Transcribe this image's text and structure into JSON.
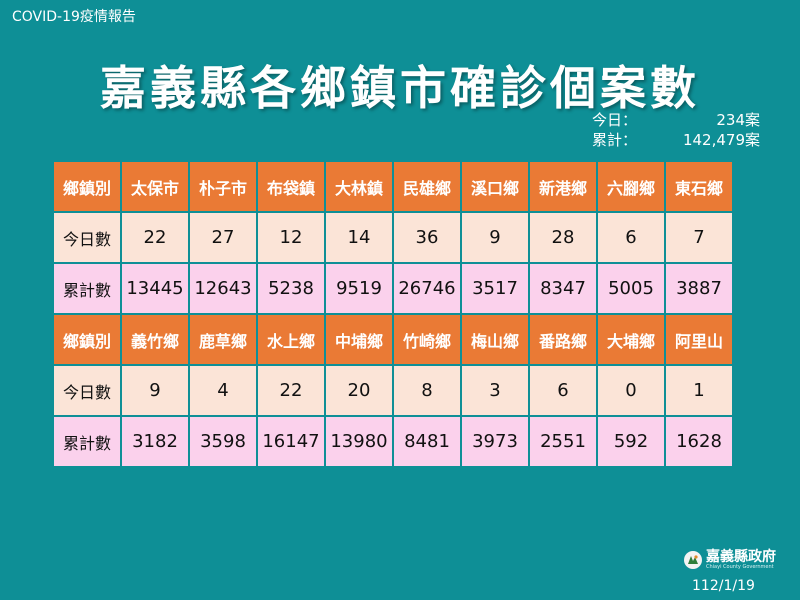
{
  "header": {
    "report_label": "COVID-19疫情報告",
    "title": "嘉義縣各鄉鎮市確診個案數"
  },
  "summary": {
    "today_label": "今日：",
    "today_value": "234案",
    "total_label": "累計：",
    "total_value": "142,479案"
  },
  "table": {
    "sections": [
      {
        "header": [
          "鄉鎮別",
          "太保市",
          "朴子市",
          "布袋鎮",
          "大林鎮",
          "民雄鄉",
          "溪口鄉",
          "新港鄉",
          "六腳鄉",
          "東石鄉"
        ],
        "today": [
          "今日數",
          "22",
          "27",
          "12",
          "14",
          "36",
          "9",
          "28",
          "6",
          "7"
        ],
        "total": [
          "累計數",
          "13445",
          "12643",
          "5238",
          "9519",
          "26746",
          "3517",
          "8347",
          "5005",
          "3887"
        ]
      },
      {
        "header": [
          "鄉鎮別",
          "義竹鄉",
          "鹿草鄉",
          "水上鄉",
          "中埔鄉",
          "竹崎鄉",
          "梅山鄉",
          "番路鄉",
          "大埔鄉",
          "阿里山"
        ],
        "today": [
          "今日數",
          "9",
          "4",
          "22",
          "20",
          "8",
          "3",
          "6",
          "0",
          "1"
        ],
        "total": [
          "累計數",
          "3182",
          "3598",
          "16147",
          "13980",
          "8481",
          "3973",
          "2551",
          "592",
          "1628"
        ]
      }
    ]
  },
  "footer": {
    "logo_icon": "county-emblem-icon",
    "logo_name": "嘉義縣政府",
    "logo_sub": "Chiayi County Government",
    "date": "112/1/19"
  },
  "colors": {
    "background": "#0e8f96",
    "header_cell": "#ea7a35",
    "today_row": "#fbe4d7",
    "total_row": "#fbd1ec"
  }
}
